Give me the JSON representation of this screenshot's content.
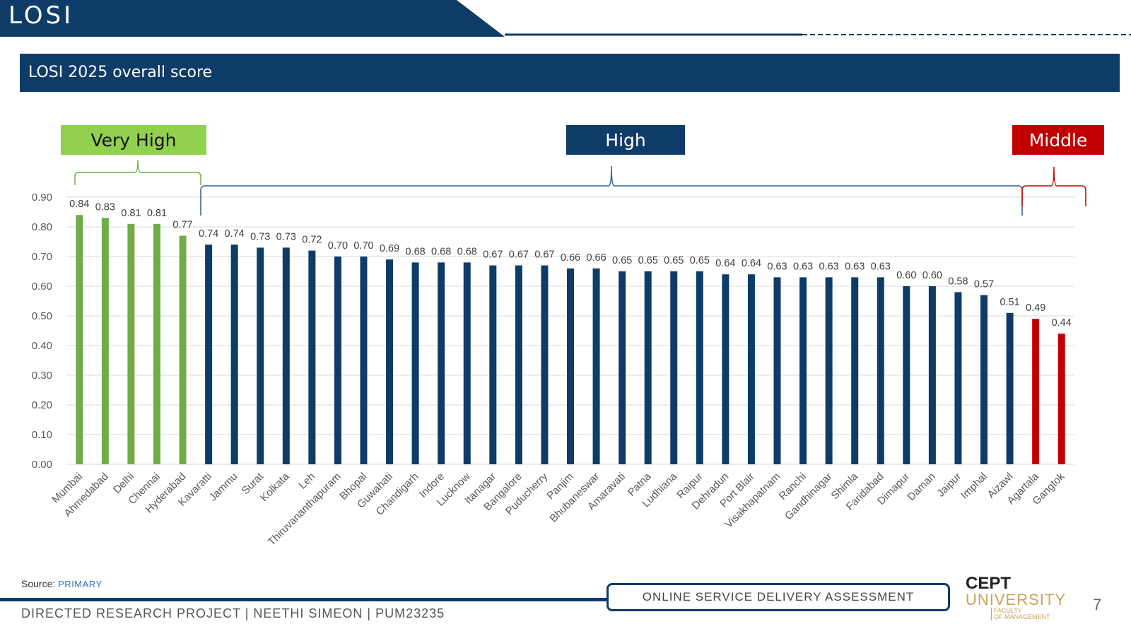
{
  "header": {
    "title": "LOSI"
  },
  "banner": {
    "title": "LOSI 2025 overall score"
  },
  "categories_legend": {
    "very_high": "Very High",
    "high": "High",
    "middle": "Middle"
  },
  "colors": {
    "very_high": "#70ad47",
    "high": "#0f3b68",
    "middle": "#c00000",
    "navy": "#0f3b68"
  },
  "chart_data": {
    "type": "bar",
    "title": "LOSI 2025 overall score",
    "xlabel": "",
    "ylabel": "",
    "ylim": [
      0,
      0.9
    ],
    "yticks": [
      "0.00",
      "0.10",
      "0.20",
      "0.30",
      "0.40",
      "0.50",
      "0.60",
      "0.70",
      "0.80",
      "0.90"
    ],
    "grid": true,
    "categories": [
      "Mumbai",
      "Ahmedabad",
      "Delhi",
      "Chennai",
      "Hyderabad",
      "Kavaratti",
      "Jammu",
      "Surat",
      "Kolkata",
      "Leh",
      "Thiruvananthapuram",
      "Bhopal",
      "Guwahati",
      "Chandigarh",
      "Indore",
      "Lucknow",
      "Itanagar",
      "Bangalore",
      "Puducherry",
      "Panjim",
      "Bhubaneswar",
      "Amaravati",
      "Patna",
      "Ludhiana",
      "Raipur",
      "Dehradun",
      "Port Blair",
      "Visakhapatnam",
      "Ranchi",
      "Gandhinagar",
      "Shimla",
      "Faridabad",
      "Dimapur",
      "Daman",
      "Jaipur",
      "Imphal",
      "Aizawl",
      "Agartala",
      "Gangtok"
    ],
    "values": [
      0.84,
      0.83,
      0.81,
      0.81,
      0.77,
      0.74,
      0.74,
      0.73,
      0.73,
      0.72,
      0.7,
      0.7,
      0.69,
      0.68,
      0.68,
      0.68,
      0.67,
      0.67,
      0.67,
      0.66,
      0.66,
      0.65,
      0.65,
      0.65,
      0.65,
      0.64,
      0.64,
      0.63,
      0.63,
      0.63,
      0.63,
      0.63,
      0.6,
      0.6,
      0.58,
      0.57,
      0.51,
      0.49,
      0.44
    ],
    "groups": [
      "very_high",
      "very_high",
      "very_high",
      "very_high",
      "very_high",
      "high",
      "high",
      "high",
      "high",
      "high",
      "high",
      "high",
      "high",
      "high",
      "high",
      "high",
      "high",
      "high",
      "high",
      "high",
      "high",
      "high",
      "high",
      "high",
      "high",
      "high",
      "high",
      "high",
      "high",
      "high",
      "high",
      "high",
      "high",
      "high",
      "high",
      "high",
      "high",
      "middle",
      "middle"
    ]
  },
  "footer": {
    "source_label": "Source:",
    "source_value": "PRIMARY",
    "left_text": "DIRECTED RESEARCH PROJECT | NEETHI SIMEON | PUM23235",
    "center_text": "ONLINE SERVICE DELIVERY ASSESSMENT",
    "page_number": "7"
  },
  "logo": {
    "line1": "CEPT",
    "line2": "UNIVERSITY",
    "line3a": "FACULTY",
    "line3b": "OF MANAGEMENT"
  }
}
